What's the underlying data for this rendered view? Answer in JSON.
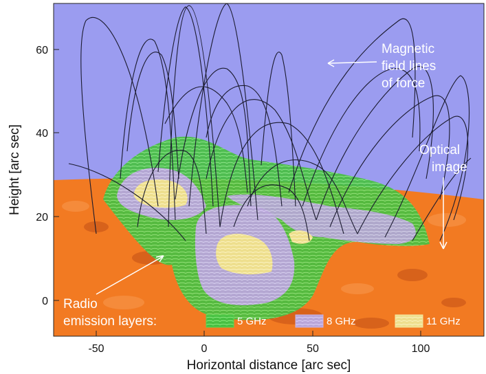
{
  "axes": {
    "xlabel": "Horizontal distance [arc sec]",
    "ylabel": "Height [arc sec]",
    "x_ticks": [
      "-50",
      "0",
      "50",
      "100"
    ],
    "y_ticks": [
      "0",
      "20",
      "40",
      "60"
    ]
  },
  "annotations": {
    "magnetic": [
      "Magnetic",
      "field lines",
      "of force"
    ],
    "optical": [
      "Optical",
      "image"
    ],
    "radio": [
      "Radio",
      "emission layers:"
    ]
  },
  "legend": [
    {
      "label": "5 GHz",
      "color": "#59d34f"
    },
    {
      "label": "8 GHz",
      "color": "#c9b3e6"
    },
    {
      "label": "11 GHz",
      "color": "#f4e7a0"
    }
  ],
  "colors": {
    "sky": "#9b9cf0",
    "sun": "#f27a22",
    "field_lines": "#1a1a2e",
    "arrow": "#ffffff"
  }
}
